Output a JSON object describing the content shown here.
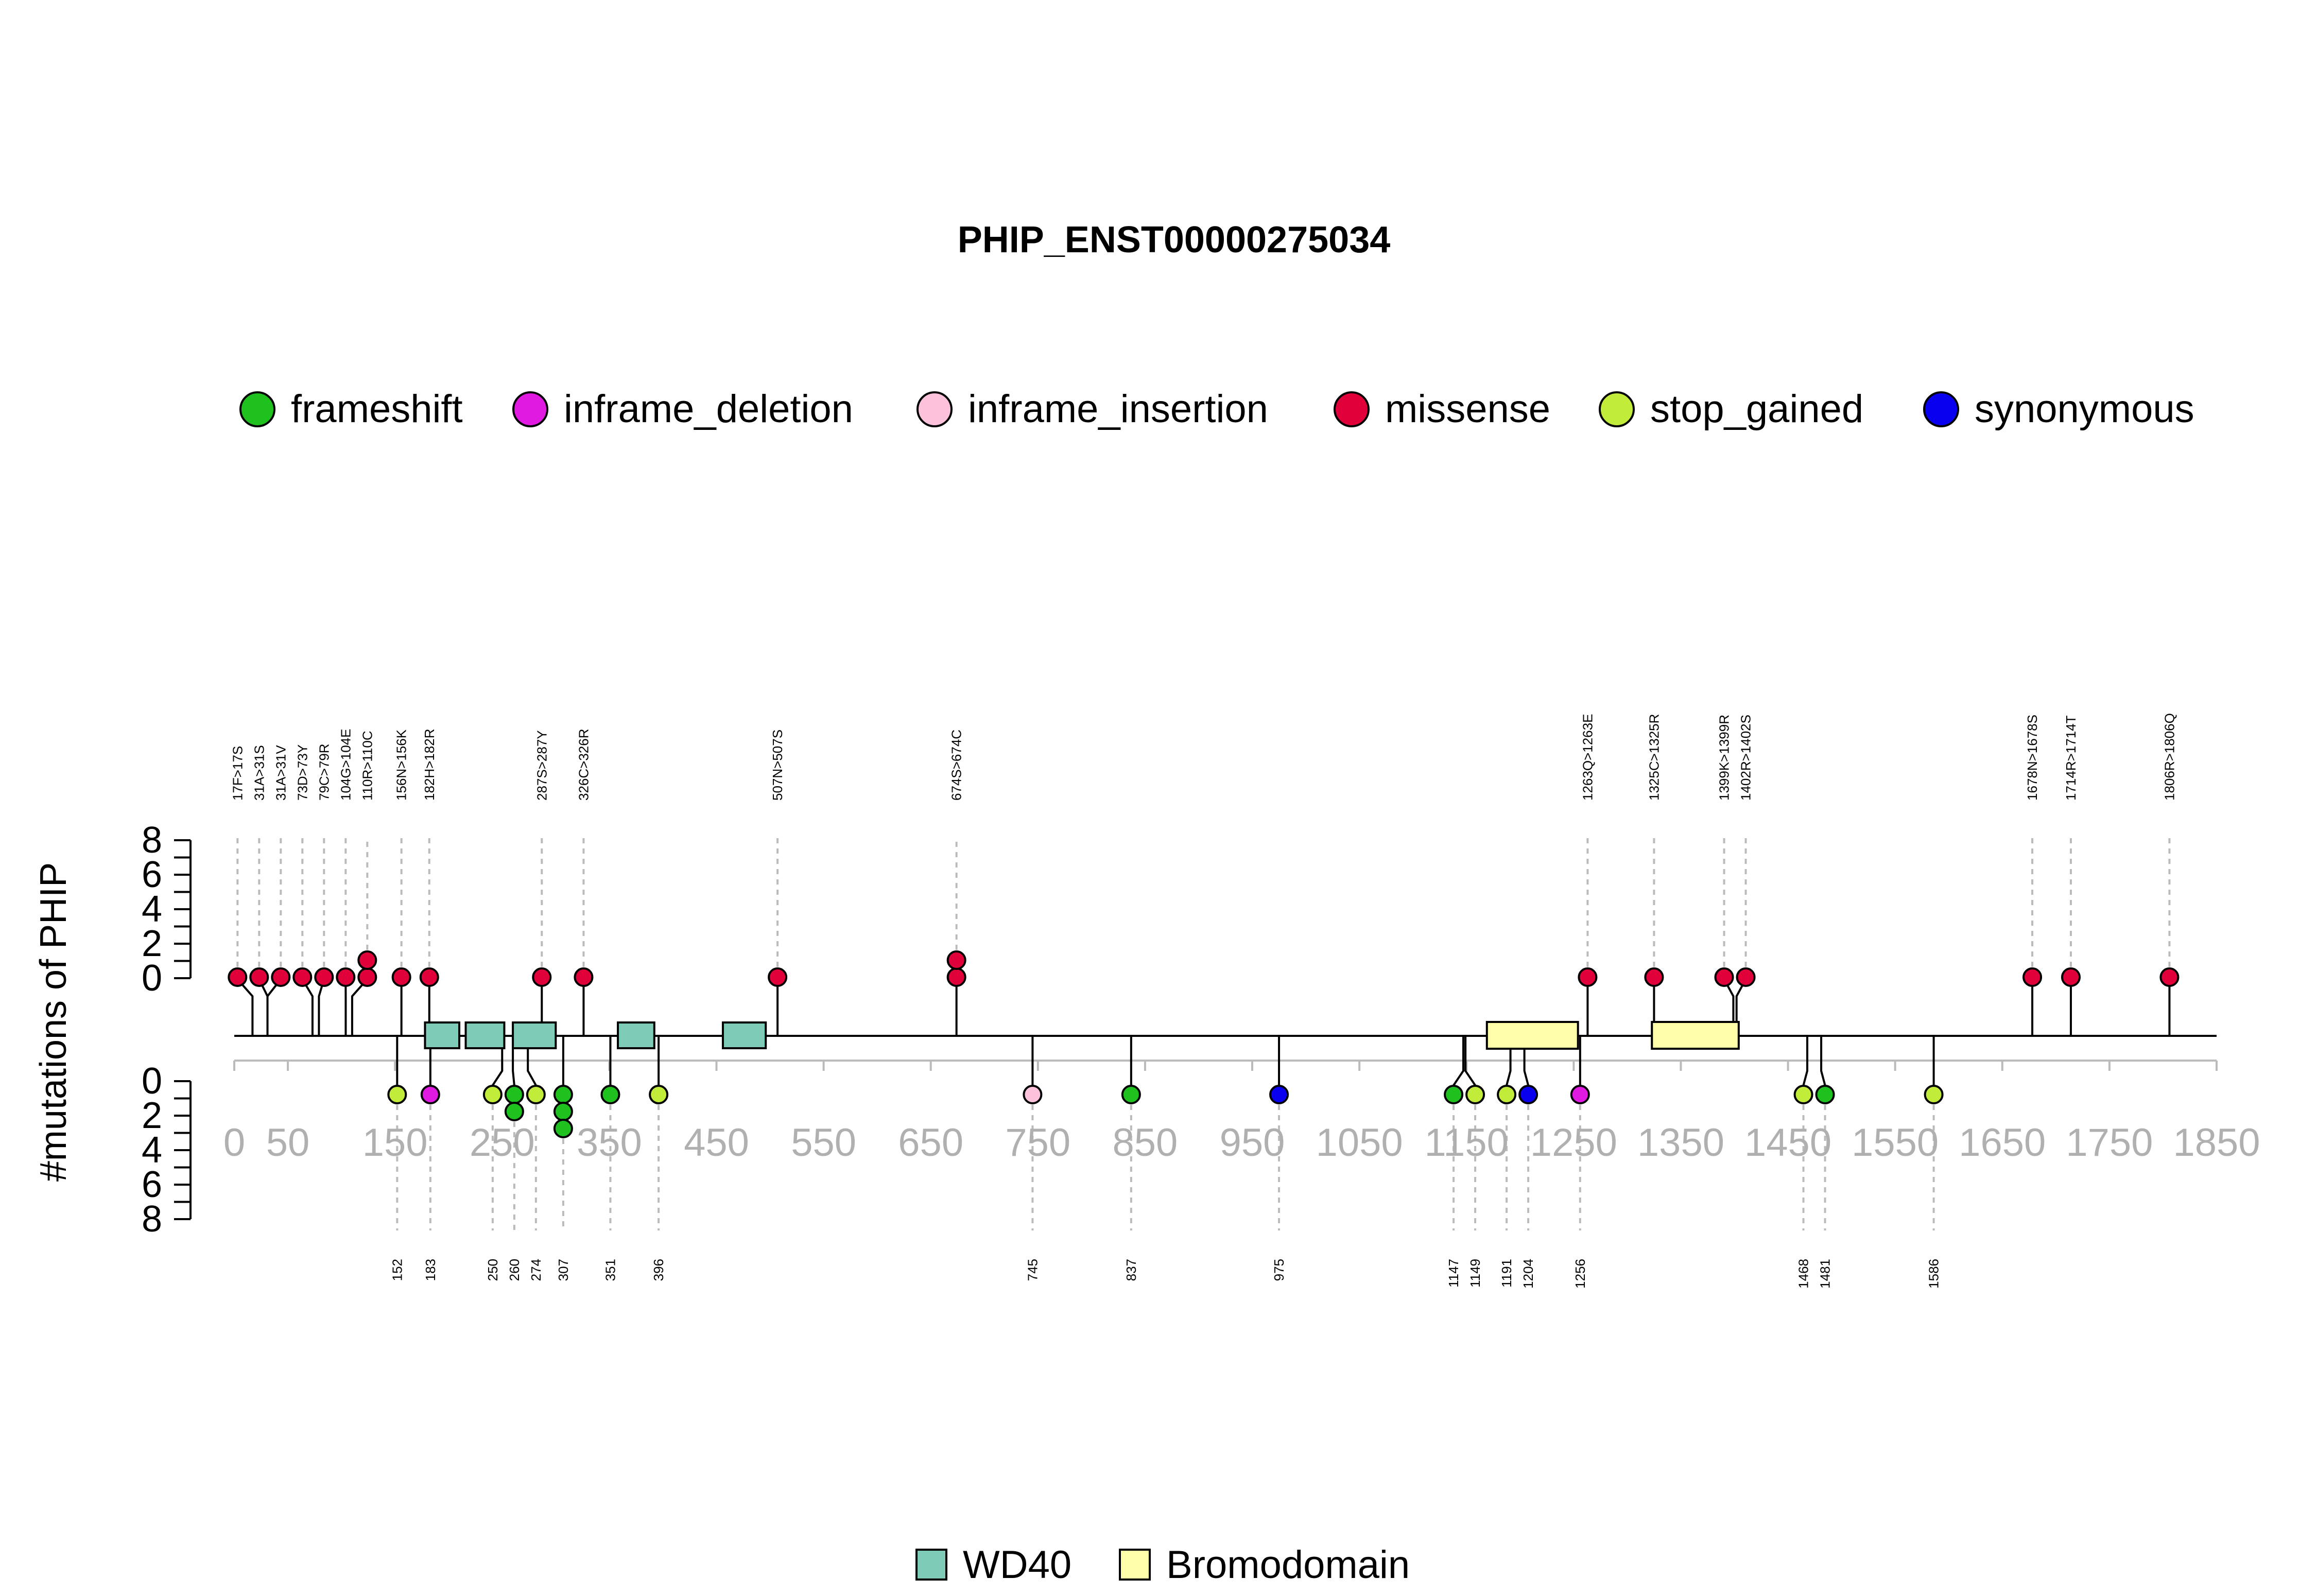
{
  "chart_data": {
    "type": "lollipop",
    "title": "PHIP_ENST00000275034",
    "ylabel": "#mutations of PHIP",
    "x_ticks": [
      0,
      50,
      150,
      250,
      350,
      450,
      550,
      650,
      750,
      850,
      950,
      1050,
      1150,
      1250,
      1350,
      1450,
      1550,
      1650,
      1750,
      1850
    ],
    "x_tick_labels": [
      "0",
      "50",
      "150",
      "250",
      "350",
      "450",
      "550",
      "650",
      "750",
      "850",
      "950",
      "1050",
      "1150",
      "1250",
      "1350",
      "1450",
      "1550",
      "1650",
      "1750",
      "1850"
    ],
    "xlim": [
      0,
      1850
    ],
    "y_ticks": [
      0,
      2,
      4,
      6,
      8
    ],
    "y_tick_labels": [
      "0",
      "2",
      "4",
      "6",
      "8"
    ],
    "ylim": [
      0,
      8
    ],
    "legend_mutation": [
      {
        "name": "frameshift",
        "color": "#1fc11f"
      },
      {
        "name": "inframe_deletion",
        "color": "#e01ae0"
      },
      {
        "name": "inframe_insertion",
        "color": "#fcc2dc"
      },
      {
        "name": "missense",
        "color": "#e0003a"
      },
      {
        "name": "stop_gained",
        "color": "#c2ec3a"
      },
      {
        "name": "synonymous",
        "color": "#0a00f0"
      }
    ],
    "legend_domain": [
      {
        "name": "WD40",
        "color": "#7ecbb8"
      },
      {
        "name": "Bromodomain",
        "color": "#ffffaa"
      }
    ],
    "domains": [
      {
        "type": "WD40",
        "start": 178,
        "end": 210
      },
      {
        "type": "WD40",
        "start": 216,
        "end": 252
      },
      {
        "type": "WD40",
        "start": 260,
        "end": 300
      },
      {
        "type": "WD40",
        "start": 358,
        "end": 392
      },
      {
        "type": "WD40",
        "start": 456,
        "end": 496
      },
      {
        "type": "Bromodomain",
        "start": 1169,
        "end": 1254
      },
      {
        "type": "Bromodomain",
        "start": 1323,
        "end": 1404
      }
    ],
    "top_mutations": [
      {
        "label": "17F>17S",
        "pos": 17,
        "count": 1,
        "type": "missense"
      },
      {
        "label": "31A>31S",
        "pos": 31,
        "count": 1,
        "type": "missense"
      },
      {
        "label": "31A>31V",
        "pos": 31,
        "count": 1,
        "type": "missense"
      },
      {
        "label": "73D>73Y",
        "pos": 73,
        "count": 1,
        "type": "missense"
      },
      {
        "label": "79C>79R",
        "pos": 79,
        "count": 1,
        "type": "missense"
      },
      {
        "label": "104G>104E",
        "pos": 104,
        "count": 1,
        "type": "missense"
      },
      {
        "label": "110R>110C",
        "pos": 110,
        "count": 2,
        "type": "missense"
      },
      {
        "label": "156N>156K",
        "pos": 156,
        "count": 1,
        "type": "missense"
      },
      {
        "label": "182H>182R",
        "pos": 182,
        "count": 1,
        "type": "missense"
      },
      {
        "label": "287S>287Y",
        "pos": 287,
        "count": 1,
        "type": "missense"
      },
      {
        "label": "326C>326R",
        "pos": 326,
        "count": 1,
        "type": "missense"
      },
      {
        "label": "507N>507S",
        "pos": 507,
        "count": 1,
        "type": "missense"
      },
      {
        "label": "674S>674C",
        "pos": 674,
        "count": 2,
        "type": "missense"
      },
      {
        "label": "1263Q>1263E",
        "pos": 1263,
        "count": 1,
        "type": "missense"
      },
      {
        "label": "1325C>1325R",
        "pos": 1325,
        "count": 1,
        "type": "missense"
      },
      {
        "label": "1399K>1399R",
        "pos": 1399,
        "count": 1,
        "type": "missense"
      },
      {
        "label": "1402R>1402S",
        "pos": 1402,
        "count": 1,
        "type": "missense"
      },
      {
        "label": "1678N>1678S",
        "pos": 1678,
        "count": 1,
        "type": "missense"
      },
      {
        "label": "1714R>1714T",
        "pos": 1714,
        "count": 1,
        "type": "missense"
      },
      {
        "label": "1806R>1806Q",
        "pos": 1806,
        "count": 1,
        "type": "missense"
      }
    ],
    "bottom_mutations": [
      {
        "label": "152",
        "pos": 152,
        "count": 1,
        "type": "stop_gained"
      },
      {
        "label": "183",
        "pos": 183,
        "count": 1,
        "type": "inframe_deletion"
      },
      {
        "label": "250",
        "pos": 250,
        "count": 1,
        "type": "stop_gained"
      },
      {
        "label": "260",
        "pos": 260,
        "count": 2,
        "type": "frameshift"
      },
      {
        "label": "274",
        "pos": 274,
        "count": 1,
        "type": "stop_gained"
      },
      {
        "label": "307",
        "pos": 307,
        "count": 3,
        "type": "frameshift"
      },
      {
        "label": "351",
        "pos": 351,
        "count": 1,
        "type": "frameshift"
      },
      {
        "label": "396",
        "pos": 396,
        "count": 1,
        "type": "stop_gained"
      },
      {
        "label": "745",
        "pos": 745,
        "count": 1,
        "type": "inframe_insertion"
      },
      {
        "label": "837",
        "pos": 837,
        "count": 1,
        "type": "frameshift"
      },
      {
        "label": "975",
        "pos": 975,
        "count": 1,
        "type": "synonymous"
      },
      {
        "label": "1147",
        "pos": 1147,
        "count": 1,
        "type": "frameshift"
      },
      {
        "label": "1149",
        "pos": 1149,
        "count": 1,
        "type": "stop_gained"
      },
      {
        "label": "1191",
        "pos": 1191,
        "count": 1,
        "type": "stop_gained"
      },
      {
        "label": "1204",
        "pos": 1204,
        "count": 1,
        "type": "synonymous"
      },
      {
        "label": "1256",
        "pos": 1256,
        "count": 1,
        "type": "inframe_deletion"
      },
      {
        "label": "1468",
        "pos": 1468,
        "count": 1,
        "type": "stop_gained"
      },
      {
        "label": "1481",
        "pos": 1481,
        "count": 1,
        "type": "frameshift"
      },
      {
        "label": "1586",
        "pos": 1586,
        "count": 1,
        "type": "stop_gained"
      }
    ]
  }
}
